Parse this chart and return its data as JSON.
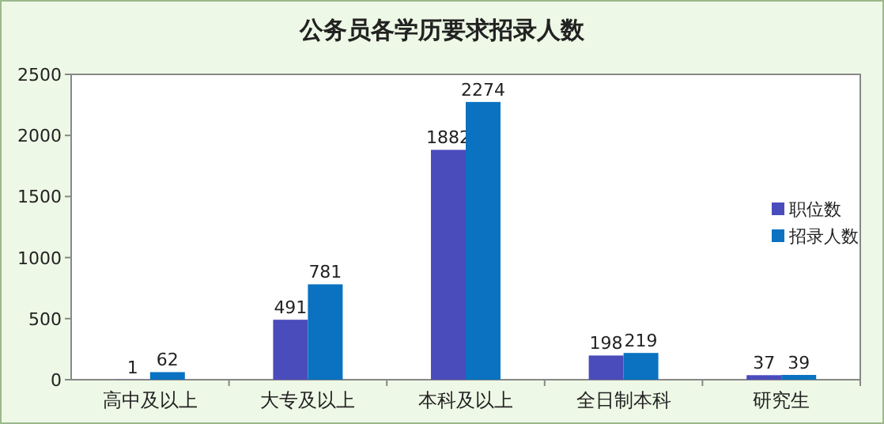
{
  "chart_data": {
    "type": "bar",
    "title": "公务员各学历要求招录人数",
    "categories": [
      "高中及以上",
      "大专及以上",
      "本科及以上",
      "全日制本科",
      "研究生"
    ],
    "series": [
      {
        "name": "职位数",
        "color": "#4a4cbc",
        "values": [
          1,
          491,
          1882,
          198,
          37
        ]
      },
      {
        "name": "招录人数",
        "color": "#0a72c0",
        "values": [
          62,
          781,
          2274,
          219,
          39
        ]
      }
    ],
    "ylim": [
      0,
      2500
    ],
    "yticks": [
      0,
      500,
      1000,
      1500,
      2000,
      2500
    ],
    "data_labels": true,
    "legend": "right"
  }
}
